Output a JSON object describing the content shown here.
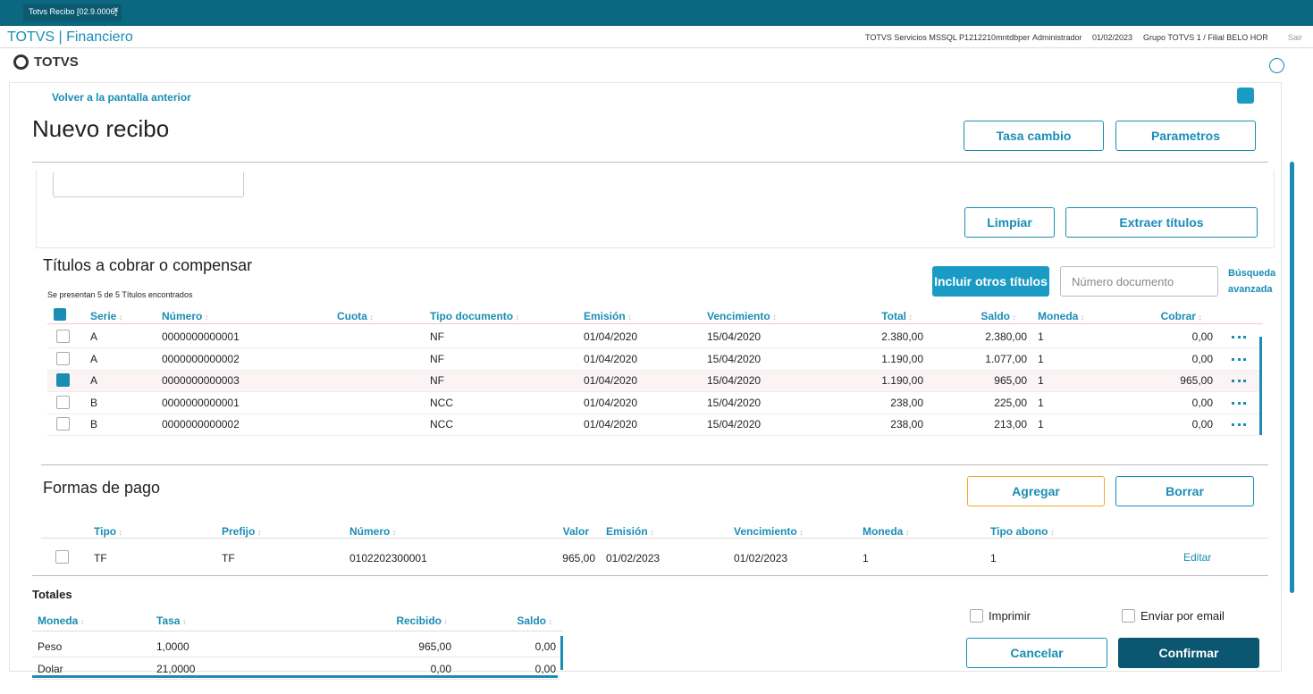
{
  "tab": {
    "title": "Totvs Recibo [02.9.0006]",
    "close": "×"
  },
  "app_bar": {
    "title": "TOTVS | Financiero",
    "info": [
      "TOTVS Servicios MSSQL P1212210mntdbper",
      "Administrador",
      "01/02/2023",
      "Grupo TOTVS 1 / Filial BELO HOR"
    ],
    "exit": "Sair"
  },
  "logo": "TOTVS",
  "page": {
    "back": "Volver a la pantalla anterior",
    "title": "Nuevo recibo",
    "actions": [
      "Tasa cambio",
      "Parametros"
    ]
  },
  "filter_actions": [
    "Limpiar",
    "Extraer títulos"
  ],
  "titles": {
    "heading": "Títulos a cobrar o compensar",
    "count": "Se presentan 5 de 5 Títulos encontrados",
    "include": "Incluir otros títulos",
    "search_placeholder": "Número documento",
    "advanced": [
      "Búsqueda",
      "avanzada"
    ],
    "columns": [
      "Serie",
      "Número",
      "Cuota",
      "Tipo documento",
      "Emisión",
      "Vencimiento",
      "Total",
      "Saldo",
      "Moneda",
      "Cobrar"
    ],
    "rows": [
      [
        "A",
        "0000000000001",
        "",
        "NF",
        "01/04/2020",
        "15/04/2020",
        "2.380,00",
        "2.380,00",
        "1",
        "0,00"
      ],
      [
        "A",
        "0000000000002",
        "",
        "NF",
        "01/04/2020",
        "15/04/2020",
        "1.190,00",
        "1.077,00",
        "1",
        "0,00"
      ],
      [
        "A",
        "0000000000003",
        "",
        "NF",
        "01/04/2020",
        "15/04/2020",
        "1.190,00",
        "965,00",
        "1",
        "965,00"
      ],
      [
        "B",
        "0000000000001",
        "",
        "NCC",
        "01/04/2020",
        "15/04/2020",
        "238,00",
        "225,00",
        "1",
        "0,00"
      ],
      [
        "B",
        "0000000000002",
        "",
        "NCC",
        "01/04/2020",
        "15/04/2020",
        "238,00",
        "213,00",
        "1",
        "0,00"
      ]
    ],
    "checked": [
      false,
      false,
      true,
      false,
      false
    ]
  },
  "payments": {
    "heading": "Formas de pago",
    "actions": [
      "Agregar",
      "Borrar"
    ],
    "columns": [
      "Tipo",
      "Prefijo",
      "Número",
      "Valor",
      "Emisión",
      "Vencimiento",
      "Moneda",
      "Tipo abono"
    ],
    "rows": [
      [
        "TF",
        "TF",
        "0102202300001",
        "965,00",
        "01/02/2023",
        "01/02/2023",
        "1",
        "1"
      ]
    ],
    "edit": "Editar"
  },
  "totals": {
    "heading": "Totales",
    "columns": [
      "Moneda",
      "Tasa",
      "Recibido",
      "Saldo"
    ],
    "rows": [
      [
        "Peso",
        "1,0000",
        "965,00",
        "0,00"
      ],
      [
        "Dolar",
        "21,0000",
        "0,00",
        "0,00"
      ]
    ]
  },
  "footer": {
    "options": [
      "Imprimir",
      "Enviar por email"
    ],
    "buttons": [
      "Cancelar",
      "Confirmar"
    ]
  }
}
